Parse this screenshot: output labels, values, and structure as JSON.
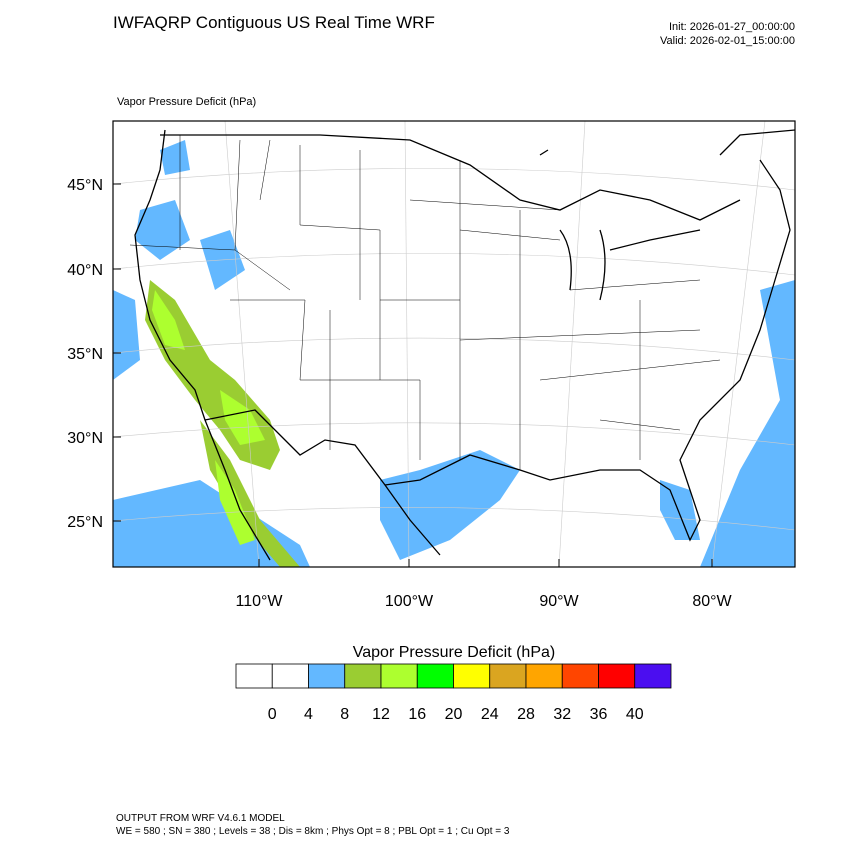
{
  "header": {
    "title": "IWFAQRP Contiguous US Real Time WRF",
    "init": "Init: 2026-01-27_00:00:00",
    "valid": "Valid: 2026-02-01_15:00:00"
  },
  "map": {
    "subtitle": "Vapor Pressure Deficit   (hPa)",
    "lat_labels": [
      "45°N",
      "40°N",
      "35°N",
      "30°N",
      "25°N"
    ],
    "lon_labels": [
      "110°W",
      "100°W",
      "90°W",
      "80°W"
    ]
  },
  "colorbar": {
    "title": "Vapor Pressure Deficit  (hPa)",
    "colors": [
      "#ffffff",
      "#ffffff",
      "#63b8ff",
      "#9acd32",
      "#adff2f",
      "#00ff00",
      "#ffff00",
      "#daa520",
      "#ffa500",
      "#ff4500",
      "#ff0000",
      "#4b0ef0"
    ],
    "labels": [
      "0",
      "4",
      "8",
      "12",
      "16",
      "20",
      "24",
      "28",
      "32",
      "36",
      "40"
    ]
  },
  "footer": {
    "line1": "OUTPUT FROM WRF V4.6.1 MODEL",
    "line2": "WE = 580 ; SN = 380 ; Levels = 38 ; Dis = 8km ; Phys Opt = 8 ; PBL Opt = 1 ; Cu Opt = 3"
  }
}
